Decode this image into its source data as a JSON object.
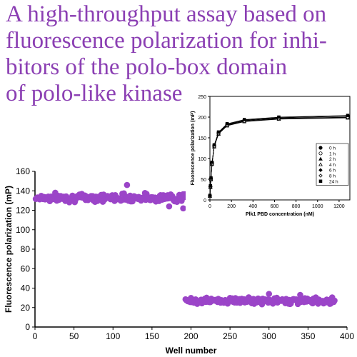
{
  "title_lines": [
    "A high-throughput assay based on",
    "fluorescence polarization for inhi-",
    "bitors of the polo-box domain",
    "of polo-like kinase"
  ],
  "colors": {
    "title": "#8b3fb3",
    "points": "#9b45c8",
    "axes": "#000000"
  },
  "chart_data": [
    {
      "type": "scatter",
      "title": "",
      "xlabel": "Well number",
      "ylabel": "Fluorescence polarization (mP)",
      "xlim": [
        0,
        400
      ],
      "ylim": [
        0,
        160
      ],
      "xticks": [
        0,
        50,
        100,
        150,
        200,
        250,
        300,
        350,
        400
      ],
      "yticks": [
        0,
        20,
        40,
        60,
        80,
        100,
        120,
        140,
        160
      ],
      "grid": false,
      "legend": "none",
      "series": [
        {
          "x_range": [
            1,
            192
          ],
          "y_mean": 133,
          "y_spread": 4,
          "outliers": [
            [
              118,
              146
            ],
            [
              172,
              124
            ],
            [
              190,
              122
            ]
          ]
        },
        {
          "x_range": [
            193,
            384
          ],
          "y_mean": 27,
          "y_spread": 3,
          "outliers": [
            [
              300,
              34
            ],
            [
              340,
              33
            ]
          ]
        }
      ]
    },
    {
      "type": "line",
      "title": "",
      "xlabel": "Plk1 PBD concentration (nM)",
      "ylabel": "Fluorescence polarization (mP)",
      "xlim": [
        0,
        1300
      ],
      "ylim": [
        0,
        250
      ],
      "xticks": [
        0,
        200,
        400,
        600,
        800,
        1000,
        1200
      ],
      "yticks": [
        0,
        50,
        100,
        150,
        200,
        250
      ],
      "grid": false,
      "legend": "bottom-right",
      "x": [
        0,
        5,
        10,
        20,
        40,
        80,
        160,
        320,
        640,
        1280
      ],
      "series": [
        {
          "name": "0 h",
          "marker": "filled-circle",
          "values": [
            10,
            33,
            52,
            90,
            132,
            163,
            183,
            193,
            199,
            203
          ]
        },
        {
          "name": "1 h",
          "marker": "open-circle",
          "values": [
            10,
            32,
            51,
            88,
            130,
            161,
            181,
            191,
            197,
            200
          ]
        },
        {
          "name": "2 h",
          "marker": "filled-triangle",
          "values": [
            9,
            31,
            50,
            87,
            129,
            160,
            180,
            190,
            196,
            199
          ]
        },
        {
          "name": "4 h",
          "marker": "open-triangle",
          "values": [
            9,
            30,
            49,
            86,
            128,
            159,
            179,
            189,
            195,
            198
          ]
        },
        {
          "name": "6 h",
          "marker": "filled-diamond",
          "values": [
            10,
            32,
            51,
            89,
            131,
            162,
            182,
            192,
            198,
            202
          ]
        },
        {
          "name": "8 h",
          "marker": "open-diamond",
          "values": [
            9,
            31,
            50,
            87,
            129,
            160,
            180,
            190,
            196,
            199
          ]
        },
        {
          "name": "24 h",
          "marker": "filled-square",
          "values": [
            11,
            34,
            53,
            91,
            133,
            164,
            184,
            194,
            200,
            204
          ]
        }
      ]
    }
  ]
}
